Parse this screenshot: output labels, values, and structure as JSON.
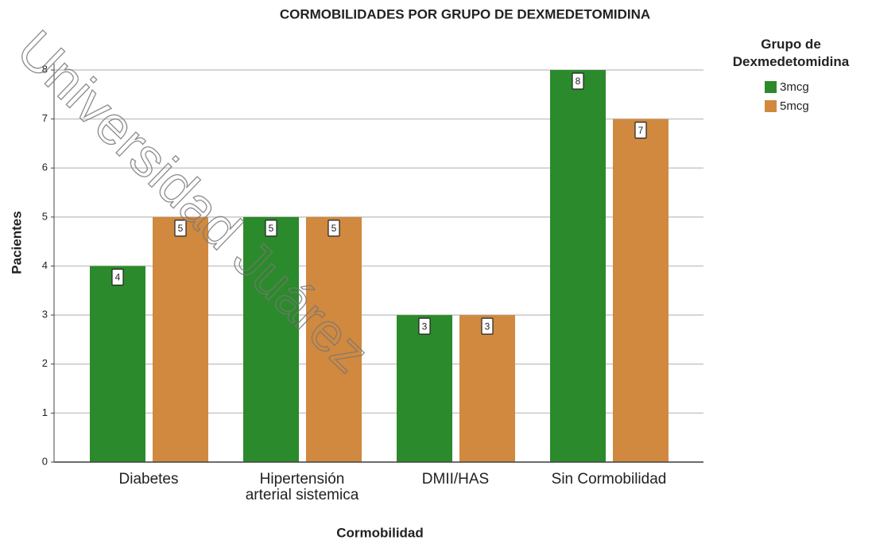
{
  "chart_data": {
    "type": "bar",
    "title": "CORMOBILIDADES POR GRUPO DE DEXMEDETOMIDINA",
    "x_label": "Cormobilidad",
    "y_label": "Pacientes",
    "legend_title": "Grupo de\nDexmedetomidina",
    "legend": "right",
    "watermark": "Universidad Juárez",
    "categories": [
      "Diabetes",
      "Hipertensión\narterial sistemica",
      "DMII/HAS",
      "Sin Cormobilidad"
    ],
    "series": [
      {
        "name": "3mcg",
        "color": "#2b8a2b",
        "values": [
          4,
          5,
          3,
          8
        ]
      },
      {
        "name": "5mcg",
        "color": "#d0893f",
        "values": [
          5,
          5,
          3,
          7
        ]
      }
    ],
    "ylim": [
      0,
      8
    ],
    "yticks": [
      0,
      1,
      2,
      3,
      4,
      5,
      6,
      7,
      8
    ],
    "grid": true
  }
}
